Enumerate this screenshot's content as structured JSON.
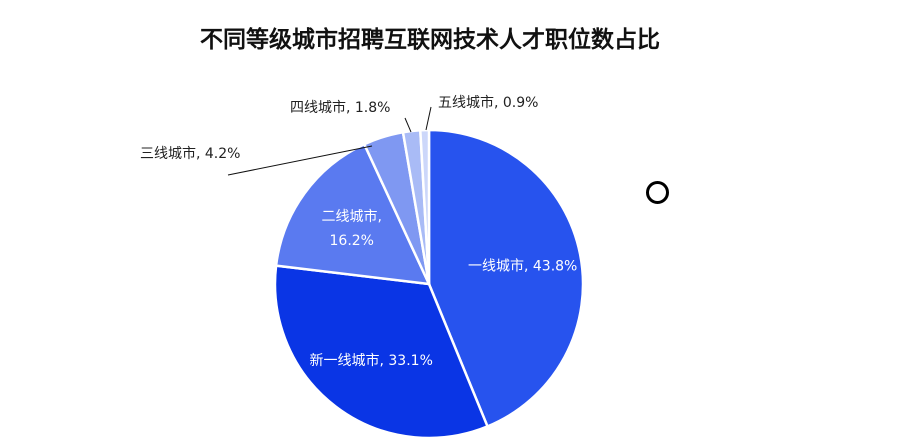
{
  "chart_data": {
    "type": "pie",
    "title": "不同等级城市招聘互联网技术人才职位数占比",
    "categories": [
      "一线城市",
      "新一线城市",
      "二线城市",
      "三线城市",
      "四线城市",
      "五线城市"
    ],
    "values": [
      43.8,
      33.1,
      16.2,
      4.2,
      1.8,
      0.9
    ],
    "unit": "%",
    "labels": [
      {
        "lines": [
          "一线城市, 43.8%"
        ]
      },
      {
        "lines": [
          "新一线城市, 33.1%"
        ]
      },
      {
        "lines": [
          "二线城市,",
          "16.2%"
        ]
      },
      {
        "lines": [
          "三线城市, 4.2%"
        ]
      },
      {
        "lines": [
          "四线城市, 1.8%"
        ]
      },
      {
        "lines": [
          "五线城市, 0.9%"
        ]
      }
    ],
    "colors": [
      "#2753ee",
      "#0a35e5",
      "#5a7af0",
      "#7f98f2",
      "#a9bbf6",
      "#ccd7fa"
    ],
    "legend": "none"
  }
}
